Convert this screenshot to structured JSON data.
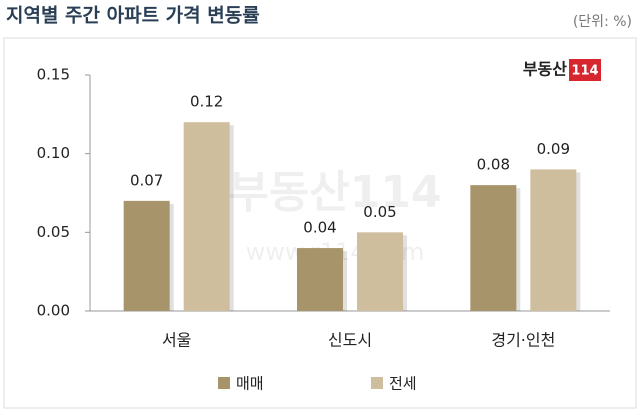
{
  "chart_data": {
    "type": "bar",
    "title": "지역별 주간 아파트 가격 변동률",
    "unit": "(단위: %)",
    "logo": {
      "text": "부동산",
      "number": "114"
    },
    "watermark": {
      "text": "부동산114",
      "url": "www.r114.com"
    },
    "categories": [
      "서울",
      "신도시",
      "경기·인천"
    ],
    "series": [
      {
        "name": "매매",
        "color": "#a8946a",
        "values": [
          0.07,
          0.04,
          0.08
        ]
      },
      {
        "name": "전세",
        "color": "#cfbe9e",
        "values": [
          0.12,
          0.05,
          0.09
        ]
      }
    ],
    "ylim": [
      0,
      0.15
    ],
    "yticks": [
      {
        "value": 0,
        "label": "0.00"
      },
      {
        "value": 0.05,
        "label": "0.05"
      },
      {
        "value": 0.1,
        "label": "0.10"
      },
      {
        "value": 0.15,
        "label": "0.15"
      }
    ],
    "grid": false,
    "legend": "bottom"
  }
}
